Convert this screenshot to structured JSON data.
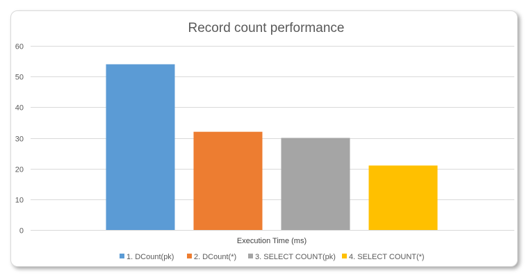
{
  "chart_data": {
    "type": "bar",
    "title": "Record count performance",
    "xlabel": "Execution Time (ms)",
    "ylabel": "",
    "ylim": [
      0,
      60
    ],
    "yticks": [
      0,
      10,
      20,
      30,
      40,
      50,
      60
    ],
    "grid": true,
    "legend_position": "bottom",
    "series": [
      {
        "name": "1. DCount(pk)",
        "values": [
          54
        ],
        "color": "#5B9BD5"
      },
      {
        "name": "2. DCount(*)",
        "values": [
          32
        ],
        "color": "#ED7D31"
      },
      {
        "name": "3. SELECT COUNT(pk)",
        "values": [
          30
        ],
        "color": "#A5A5A5"
      },
      {
        "name": "4. SELECT COUNT(*)",
        "values": [
          21
        ],
        "color": "#FFC000"
      }
    ]
  }
}
